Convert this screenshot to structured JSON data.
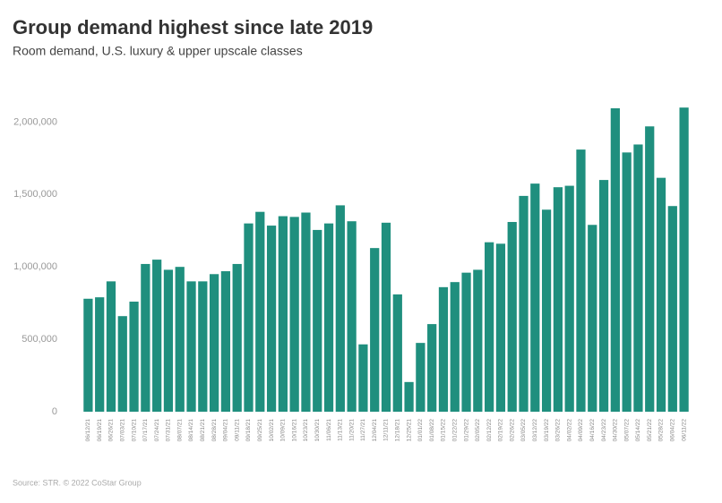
{
  "chart_data": {
    "type": "bar",
    "title": "Group demand highest since late 2019",
    "subtitle": "Room demand, U.S. luxury & upper upscale classes",
    "source": "Source: STR. © 2022 CoStar Group",
    "color": "#1f8f7e",
    "categories": [
      "06/12/21",
      "06/19/21",
      "06/26/21",
      "07/03/21",
      "07/10/21",
      "07/17/21",
      "07/24/21",
      "07/31/21",
      "08/07/21",
      "08/14/21",
      "08/21/21",
      "08/28/21",
      "09/04/21",
      "09/11/21",
      "09/18/21",
      "09/25/21",
      "10/02/21",
      "10/09/21",
      "10/16/21",
      "10/23/21",
      "10/30/21",
      "11/06/21",
      "11/13/21",
      "11/20/21",
      "11/27/21",
      "12/04/21",
      "12/11/21",
      "12/18/21",
      "12/25/21",
      "01/01/22",
      "01/08/22",
      "01/15/22",
      "01/22/22",
      "01/29/22",
      "02/05/22",
      "02/12/22",
      "02/19/22",
      "02/26/22",
      "03/05/22",
      "03/12/22",
      "03/19/22",
      "03/26/22",
      "04/02/22",
      "04/09/22",
      "04/16/22",
      "04/23/22",
      "04/30/22",
      "05/07/22",
      "05/14/22",
      "05/21/22",
      "05/28/22",
      "06/04/22",
      "06/11/22"
    ],
    "values": [
      780000,
      790000,
      900000,
      660000,
      760000,
      1020000,
      1050000,
      980000,
      1000000,
      900000,
      900000,
      950000,
      970000,
      1020000,
      1300000,
      1380000,
      1285000,
      1350000,
      1345000,
      1375000,
      1255000,
      1300000,
      1425000,
      1315000,
      465000,
      1130000,
      1305000,
      810000,
      205000,
      475000,
      605000,
      860000,
      895000,
      960000,
      980000,
      1170000,
      1160000,
      1310000,
      1490000,
      1575000,
      1395000,
      1550000,
      1560000,
      1810000,
      1290000,
      1600000,
      2095000,
      1790000,
      1845000,
      1970000,
      1615000,
      1420000,
      2100000
    ],
    "ylim": [
      0,
      2200000
    ],
    "yticks": [
      0,
      {
        "value": 500000,
        "label": "500,000"
      },
      {
        "value": 1000000,
        "label": "1,000,000"
      },
      {
        "value": 1500000,
        "label": "1,500,000"
      },
      {
        "value": 2000000,
        "label": "2,000,000"
      }
    ]
  }
}
